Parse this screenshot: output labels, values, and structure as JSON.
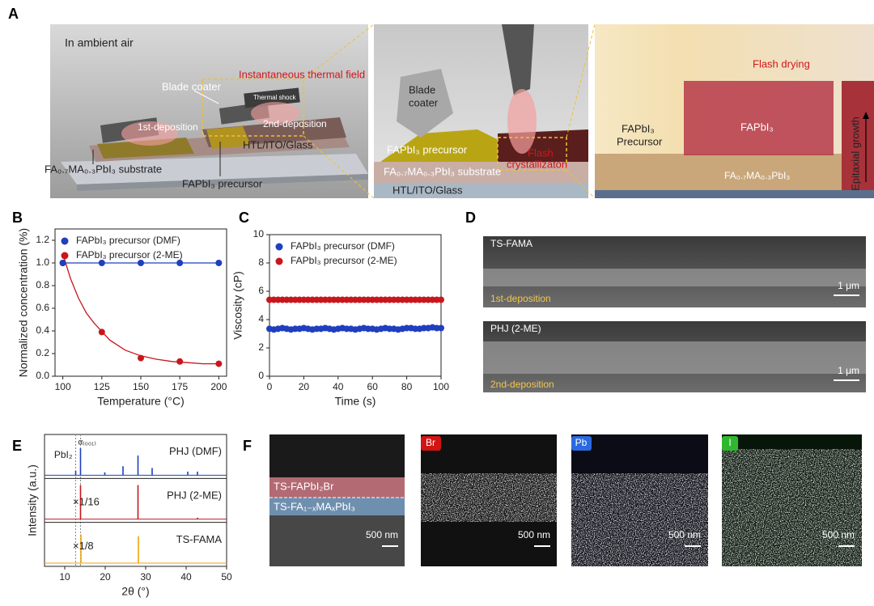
{
  "panel_labels": [
    "A",
    "B",
    "C",
    "D",
    "E",
    "F"
  ],
  "panel_a": {
    "left": [
      "In ambient air",
      "Blade coater",
      "Instantaneous thermal field",
      "Thermal shock",
      "1st-deposition",
      "2nd-deposition",
      "HTL/ITO/Glass",
      "FA₀.₇MA₀.₃PbI₃ substrate",
      "FAPbI₃ precursor"
    ],
    "middle": [
      "Blade",
      "coater",
      "Flash",
      "crystallizaton",
      "FAPbI₃ precursor",
      "FA₀.₇MA₀.₃PbI₃ substrate",
      "HTL/ITO/Glass"
    ],
    "right": [
      "Flash drying",
      "FAPbI₃",
      "Precursor",
      "FAPbI₃",
      "FA₀.₇MA₀.₃PbI₃",
      "Epitaxial growth"
    ]
  },
  "panel_d": [
    {
      "sample": "TS-FAMA",
      "step": "1st-deposition",
      "scale_bar": "1 μm"
    },
    {
      "sample": "PHJ (2-ME)",
      "step": "2nd-deposition",
      "scale_bar": "1 μm"
    }
  ],
  "panel_f": {
    "layers": [
      "TS-FAPbI₂Br",
      "TS-FA₁₋ₓMAₓPbI₃"
    ],
    "maps": [
      "Br",
      "Pb",
      "I"
    ],
    "scale_bar": "500 nm"
  },
  "chart_data": [
    {
      "type": "line",
      "x_label": "Temperature (°C)",
      "y_label": "Normalized concentration (%)",
      "x": [
        100,
        125,
        150,
        175,
        200
      ],
      "series": [
        {
          "name": "FAPbI₃ precursor (DMF)",
          "color": "#1f3fbf",
          "values": [
            1,
            1,
            1,
            1,
            1
          ]
        },
        {
          "name": "FAPbI₃ precursor (2-ME)",
          "color": "#c8161d",
          "values": [
            1,
            0.39,
            0.16,
            0.13,
            0.11
          ],
          "fit_x": [
            100,
            105,
            110,
            115,
            120,
            130,
            140,
            150,
            160,
            170,
            180,
            190,
            200
          ],
          "fit_values": [
            1.08,
            0.86,
            0.69,
            0.56,
            0.47,
            0.32,
            0.23,
            0.18,
            0.15,
            0.13,
            0.12,
            0.11,
            0.11
          ]
        }
      ],
      "xlim": [
        95,
        205
      ],
      "xticks": [
        100,
        125,
        150,
        175,
        200
      ],
      "ylim": [
        0,
        1.3
      ],
      "yticks": [
        {
          "value": 0,
          "label": "0.0"
        },
        0.2,
        0.4,
        0.6,
        0.8,
        {
          "value": 1,
          "label": "1.0"
        },
        1.2
      ],
      "legend": "upper left"
    },
    {
      "type": "scatter",
      "x_label": "Time (s)",
      "y_label": "Viscosity (cP)",
      "x": [
        0,
        2.5,
        5,
        7.5,
        10,
        12.5,
        15,
        17.5,
        20,
        22.5,
        25,
        27.5,
        30,
        32.5,
        35,
        37.5,
        40,
        42.5,
        45,
        47.5,
        50,
        52.5,
        55,
        57.5,
        60,
        62.5,
        65,
        67.5,
        70,
        72.5,
        75,
        77.5,
        80,
        82.5,
        85,
        87.5,
        90,
        92.5,
        95,
        97.5,
        100
      ],
      "series": [
        {
          "name": "FAPbI₃ precursor (DMF)",
          "color": "#1f3fbf",
          "values": [
            3.35,
            3.3,
            3.35,
            3.4,
            3.35,
            3.3,
            3.35,
            3.35,
            3.4,
            3.35,
            3.3,
            3.35,
            3.35,
            3.4,
            3.35,
            3.3,
            3.35,
            3.4,
            3.35,
            3.35,
            3.3,
            3.35,
            3.4,
            3.35,
            3.35,
            3.3,
            3.35,
            3.4,
            3.35,
            3.35,
            3.3,
            3.35,
            3.4,
            3.4,
            3.35,
            3.35,
            3.4,
            3.4,
            3.45,
            3.4,
            3.4
          ]
        },
        {
          "name": "FAPbI₃ precursor (2-ME)",
          "color": "#c8161d",
          "values": [
            5.4,
            5.4,
            5.4,
            5.4,
            5.4,
            5.4,
            5.4,
            5.4,
            5.4,
            5.4,
            5.4,
            5.4,
            5.4,
            5.4,
            5.4,
            5.4,
            5.4,
            5.4,
            5.4,
            5.4,
            5.4,
            5.4,
            5.4,
            5.4,
            5.4,
            5.4,
            5.4,
            5.4,
            5.4,
            5.4,
            5.4,
            5.4,
            5.4,
            5.4,
            5.4,
            5.4,
            5.4,
            5.4,
            5.4,
            5.4,
            5.4
          ]
        }
      ],
      "xlim": [
        0,
        100
      ],
      "xticks": [
        0,
        20,
        40,
        60,
        80,
        100
      ],
      "ylim": [
        0,
        10
      ],
      "yticks": [
        0,
        2,
        4,
        6,
        8,
        10
      ],
      "legend": "upper left"
    },
    {
      "type": "stem",
      "x_label": "2θ (°)",
      "y_label": "Intensity (a.u.)",
      "xlim": [
        5,
        50
      ],
      "xticks": [
        10,
        20,
        30,
        40,
        50
      ],
      "ylim": [
        0,
        1
      ],
      "reference_lines": [
        {
          "x": 12.7,
          "label": "PbI₂"
        },
        {
          "x": 13.9,
          "label": "α₍₀₀₁₎"
        }
      ],
      "series": [
        {
          "name": "PHJ (DMF)",
          "color": "#1f3fbf",
          "x": [
            12.7,
            13.9,
            19.9,
            24.4,
            28.1,
            31.6,
            40.4,
            42.8
          ],
          "values": [
            0.12,
            0.75,
            0.08,
            0.25,
            0.55,
            0.2,
            0.1,
            0.1
          ]
        },
        {
          "name": "PHJ (2-ME)",
          "color": "#c8161d",
          "scale_label": "×1/16",
          "x": [
            13.9,
            28.1,
            42.8
          ],
          "values": [
            0.95,
            0.95,
            0.04
          ]
        },
        {
          "name": "TS-FAMA",
          "color": "#f0a30a",
          "scale_label": "×1/8",
          "x": [
            14.0,
            28.2
          ],
          "values": [
            0.8,
            0.75
          ]
        }
      ]
    }
  ]
}
